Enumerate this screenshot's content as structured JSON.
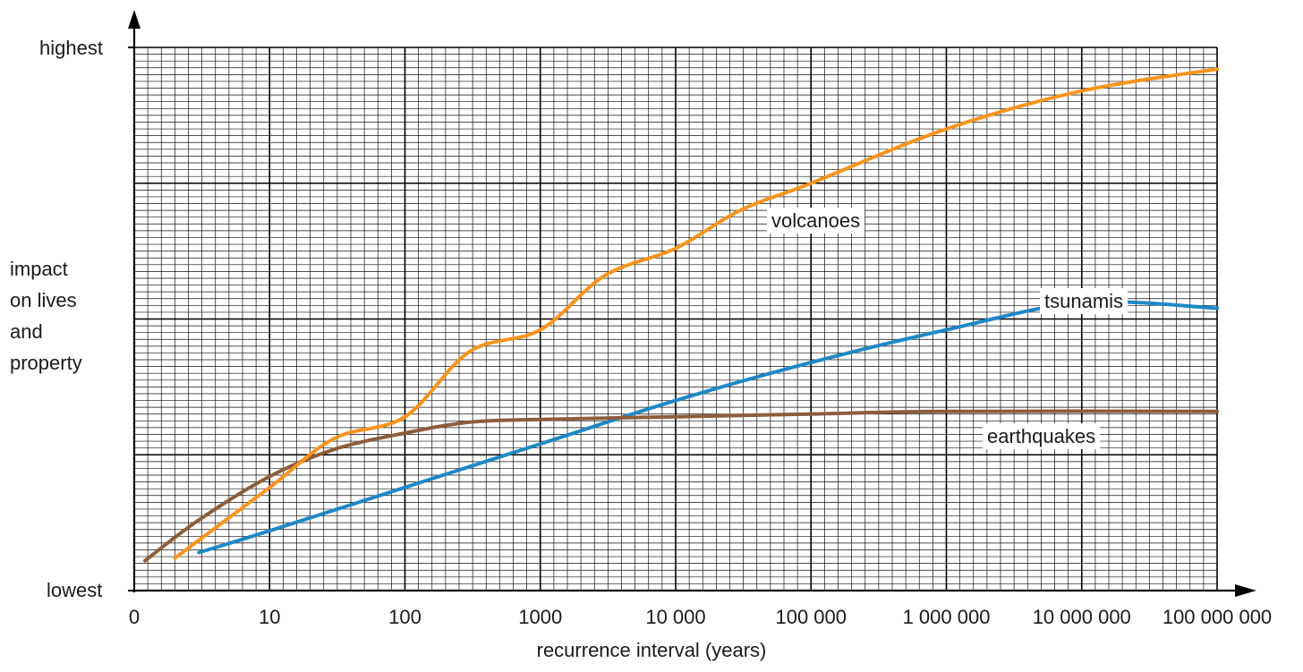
{
  "chart_data": {
    "type": "line",
    "title": "",
    "xlabel": "recurrence interval (years)",
    "ylabel": [
      "impact",
      "on lives",
      "and",
      "property"
    ],
    "x_scale": "log",
    "x_tick_labels": [
      "0",
      "10",
      "100",
      "1000",
      "10 000",
      "100 000",
      "1 000 000",
      "10 000 000",
      "100 000 000"
    ],
    "y_extremes": {
      "top": "highest",
      "bottom": "lowest"
    },
    "ylim": [
      0,
      100
    ],
    "grid": true,
    "series": [
      {
        "name": "volcanoes",
        "color": "#f7941d",
        "points": [
          [
            2,
            6
          ],
          [
            10,
            19
          ],
          [
            30,
            28
          ],
          [
            100,
            32
          ],
          [
            300,
            44
          ],
          [
            1000,
            48
          ],
          [
            3000,
            58
          ],
          [
            10000,
            63
          ],
          [
            30000,
            70
          ],
          [
            100000,
            75
          ],
          [
            1000000,
            85
          ],
          [
            10000000,
            92
          ],
          [
            100000000,
            96
          ]
        ]
      },
      {
        "name": "tsunamis",
        "color": "#1e88c7",
        "points": [
          [
            3,
            7
          ],
          [
            10,
            11
          ],
          [
            100,
            19
          ],
          [
            1000,
            27
          ],
          [
            10000,
            35
          ],
          [
            100000,
            42
          ],
          [
            1000000,
            48
          ],
          [
            10000000,
            53
          ],
          [
            100000000,
            52
          ]
        ]
      },
      {
        "name": "earthquakes",
        "color": "#8b5e3c",
        "points": [
          [
            1.2,
            5.5
          ],
          [
            3,
            13
          ],
          [
            10,
            21
          ],
          [
            30,
            26
          ],
          [
            100,
            29
          ],
          [
            300,
            31
          ],
          [
            1000,
            31.5
          ],
          [
            10000,
            32
          ],
          [
            100000,
            32.5
          ],
          [
            1000000,
            33
          ],
          [
            100000000,
            33
          ]
        ]
      }
    ]
  }
}
